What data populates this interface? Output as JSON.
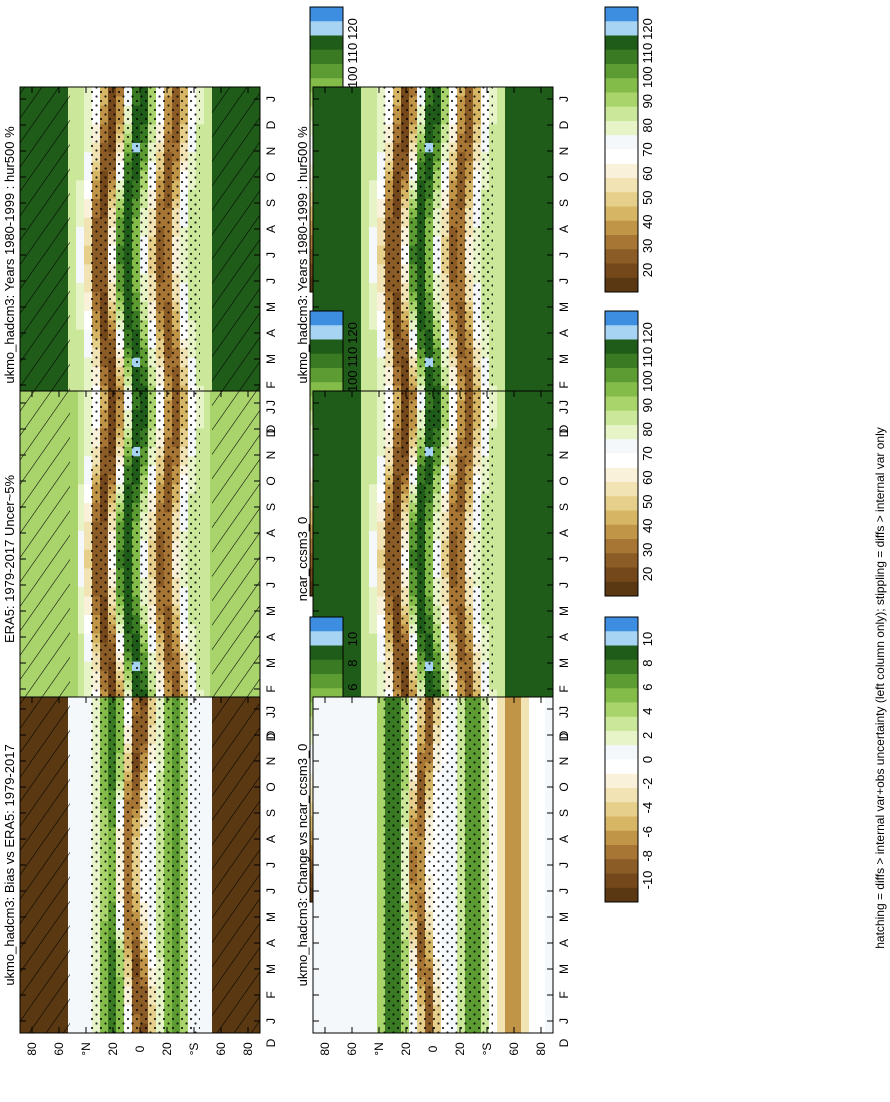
{
  "figure": {
    "footnote": "hatching = diffs > internal var+obs uncertainty (left column only); stippling = diffs > internal var only"
  },
  "palettes": {
    "abs": [
      "#5a3812",
      "#74481b",
      "#8c5c26",
      "#a87634",
      "#c19547",
      "#d6b565",
      "#e6cf8a",
      "#f1e3b3",
      "#f9f1d9",
      "#ffffff",
      "#f4f8fb",
      "#e7f4c8",
      "#cbe89a",
      "#a9d46c",
      "#84bc4a",
      "#5d9b33",
      "#397a23",
      "#205c19",
      "#a6d4f2",
      "#3d8ee0"
    ],
    "diff": [
      "#5a3812",
      "#74481b",
      "#8c5c26",
      "#a87634",
      "#c19547",
      "#d6b565",
      "#e6cf8a",
      "#f1e3b3",
      "#f9f1d9",
      "#ffffff",
      "#f4f8fb",
      "#e7f4c8",
      "#cbe89a",
      "#a9d46c",
      "#84bc4a",
      "#5d9b33",
      "#397a23",
      "#205c19",
      "#a6d4f2",
      "#3d8ee0"
    ]
  },
  "chart_data": [
    {
      "id": "p1",
      "type": "heatmap",
      "col": 0,
      "row": 0,
      "kind": "abs",
      "title": "ukmo_hadcm3: Years 1980-1999 : hur500 %",
      "x_ticks": [
        "J",
        "F",
        "M",
        "A",
        "M",
        "J",
        "J",
        "A",
        "S",
        "O",
        "N",
        "D",
        "J"
      ],
      "x_end_labels": [
        "D",
        "J"
      ],
      "y_ticks": [
        "80",
        "60",
        "°N",
        "20",
        "0",
        "20",
        "°S",
        "60",
        "80"
      ],
      "colorbar_ticks": [
        "120",
        "110",
        "100",
        "90",
        "80",
        "70",
        "60",
        "50",
        "40",
        "30",
        "20"
      ],
      "pattern": "hatch-stipple"
    },
    {
      "id": "p2",
      "type": "heatmap",
      "col": 1,
      "row": 0,
      "kind": "abs",
      "title": "ukmo_hadcm3: Years 1980-1999 : hur500 %",
      "x_ticks": [
        "J",
        "F",
        "M",
        "A",
        "M",
        "J",
        "J",
        "A",
        "S",
        "O",
        "N",
        "D",
        "J"
      ],
      "x_end_labels": [
        "D",
        "J"
      ],
      "y_ticks": [
        "80",
        "60",
        "°N",
        "20",
        "0",
        "20",
        "°S",
        "60",
        "80"
      ],
      "colorbar_ticks": [
        "120",
        "110",
        "100",
        "90",
        "80",
        "70",
        "60",
        "50",
        "40",
        "30",
        "20"
      ],
      "pattern": "stipple"
    },
    {
      "id": "p3",
      "type": "heatmap",
      "col": 0,
      "row": 1,
      "kind": "obs",
      "title": "ERA5: 1979-2017 Uncer~5%",
      "x_ticks": [
        "J",
        "F",
        "M",
        "A",
        "M",
        "J",
        "J",
        "A",
        "S",
        "O",
        "N",
        "D",
        "J"
      ],
      "x_end_labels": [
        "D",
        "J"
      ],
      "y_ticks": [
        "80",
        "60",
        "°N",
        "20",
        "0",
        "20",
        "°S",
        "60",
        "80"
      ],
      "colorbar_ticks": [
        "120",
        "110",
        "100",
        "90",
        "80",
        "70",
        "60",
        "50",
        "40",
        "30",
        "20"
      ],
      "pattern": "hatch-stipple"
    },
    {
      "id": "p4",
      "type": "heatmap",
      "col": 1,
      "row": 1,
      "kind": "abs",
      "title": "ncar_ccsm3_0",
      "x_ticks": [
        "J",
        "F",
        "M",
        "A",
        "M",
        "J",
        "J",
        "A",
        "S",
        "O",
        "N",
        "D",
        "J"
      ],
      "x_end_labels": [
        "D",
        "J"
      ],
      "y_ticks": [
        "80",
        "60",
        "°N",
        "20",
        "0",
        "20",
        "°S",
        "60",
        "80"
      ],
      "colorbar_ticks": [
        "120",
        "110",
        "100",
        "90",
        "80",
        "70",
        "60",
        "50",
        "40",
        "30",
        "20"
      ],
      "pattern": "stipple"
    },
    {
      "id": "p5",
      "type": "heatmap",
      "col": 0,
      "row": 2,
      "kind": "bias",
      "title": "ukmo_hadcm3: Bias vs ERA5: 1979-2017",
      "x_ticks": [
        "J",
        "F",
        "M",
        "A",
        "M",
        "J",
        "J",
        "A",
        "S",
        "O",
        "N",
        "D",
        "J"
      ],
      "x_end_labels": [
        "D",
        "J"
      ],
      "y_ticks": [
        "80",
        "60",
        "°N",
        "20",
        "0",
        "20",
        "°S",
        "60",
        "80"
      ],
      "colorbar_ticks": [
        "10",
        "8",
        "6",
        "4",
        "2",
        "0",
        "-2",
        "-4",
        "-6",
        "-8",
        "-10"
      ],
      "pattern": "hatch-stipple"
    },
    {
      "id": "p6",
      "type": "heatmap",
      "col": 1,
      "row": 2,
      "kind": "change",
      "title": "ukmo_hadcm3: Change vs ncar_ccsm3_0",
      "x_ticks": [
        "J",
        "F",
        "M",
        "A",
        "M",
        "J",
        "J",
        "A",
        "S",
        "O",
        "N",
        "D",
        "J"
      ],
      "x_end_labels": [
        "D",
        "J"
      ],
      "y_ticks": [
        "80",
        "60",
        "°N",
        "20",
        "0",
        "20",
        "°S",
        "60",
        "80"
      ],
      "colorbar_ticks": [
        "10",
        "8",
        "6",
        "4",
        "2",
        "0",
        "-2",
        "-4",
        "-6",
        "-8",
        "-10"
      ],
      "pattern": "stipple"
    }
  ]
}
